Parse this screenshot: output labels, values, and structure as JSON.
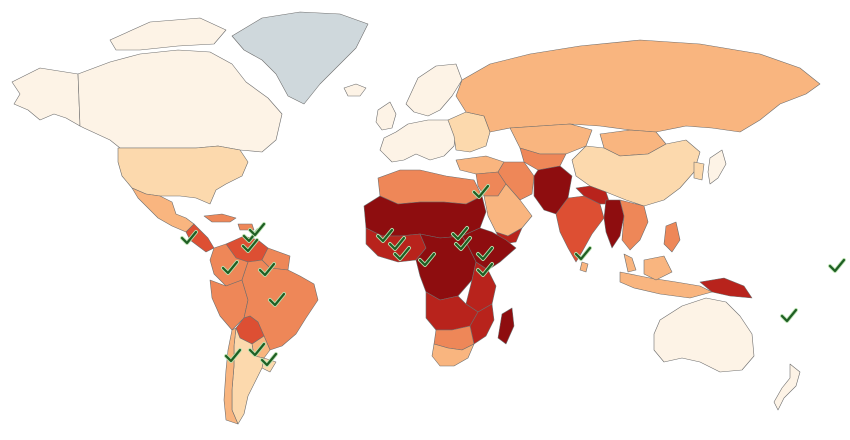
{
  "map": {
    "palette": {
      "ocean": "#ffffff",
      "border": "#6e6e6e",
      "no_data": "#cfd8dc",
      "level_1": "#fdf3e6",
      "level_2": "#fcd9ad",
      "level_3": "#f9b57f",
      "level_4": "#ee8758",
      "level_5": "#dd4f33",
      "level_6": "#b8231c",
      "level_7": "#8e0d0f"
    },
    "checkmark": {
      "fill": "#1e5e23",
      "stroke": "#b9e0b0",
      "icon": "check-icon"
    },
    "regions": [
      {
        "name": "alaska",
        "level": "level_1"
      },
      {
        "name": "canada",
        "level": "level_1"
      },
      {
        "name": "greenland",
        "level": "no_data"
      },
      {
        "name": "iceland",
        "level": "level_1"
      },
      {
        "name": "usa",
        "level": "level_2"
      },
      {
        "name": "mexico",
        "level": "level_3"
      },
      {
        "name": "central-america",
        "level": "level_5"
      },
      {
        "name": "caribbean",
        "level": "level_4"
      },
      {
        "name": "venezuela",
        "level": "level_5"
      },
      {
        "name": "colombia",
        "level": "level_4"
      },
      {
        "name": "guianas",
        "level": "level_4"
      },
      {
        "name": "peru",
        "level": "level_4"
      },
      {
        "name": "bolivia",
        "level": "level_5"
      },
      {
        "name": "brazil",
        "level": "level_4"
      },
      {
        "name": "paraguay",
        "level": "level_3"
      },
      {
        "name": "chile",
        "level": "level_3"
      },
      {
        "name": "argentina",
        "level": "level_2"
      },
      {
        "name": "uruguay",
        "level": "level_2"
      },
      {
        "name": "europe",
        "level": "level_1"
      },
      {
        "name": "uk-ireland",
        "level": "level_1"
      },
      {
        "name": "scandinavia",
        "level": "level_1"
      },
      {
        "name": "eastern-europe",
        "level": "level_2"
      },
      {
        "name": "russia",
        "level": "level_3"
      },
      {
        "name": "kazakhstan",
        "level": "level_3"
      },
      {
        "name": "mongolia",
        "level": "level_3"
      },
      {
        "name": "china",
        "level": "level_2"
      },
      {
        "name": "japan",
        "level": "level_1"
      },
      {
        "name": "korea",
        "level": "level_2"
      },
      {
        "name": "turkey",
        "level": "level_3"
      },
      {
        "name": "middle-east",
        "level": "level_4"
      },
      {
        "name": "arabia",
        "level": "level_3"
      },
      {
        "name": "yemen",
        "level": "level_6"
      },
      {
        "name": "iran",
        "level": "level_4"
      },
      {
        "name": "central-asia",
        "level": "level_4"
      },
      {
        "name": "afghanistan-pakistan",
        "level": "level_7"
      },
      {
        "name": "india",
        "level": "level_5"
      },
      {
        "name": "nepal-bangladesh",
        "level": "level_6"
      },
      {
        "name": "sri-lanka",
        "level": "level_3"
      },
      {
        "name": "myanmar",
        "level": "level_7"
      },
      {
        "name": "indochina",
        "level": "level_4"
      },
      {
        "name": "malaysia",
        "level": "level_3"
      },
      {
        "name": "philippines",
        "level": "level_4"
      },
      {
        "name": "indonesia",
        "level": "level_3"
      },
      {
        "name": "papua-new-guinea",
        "level": "level_6"
      },
      {
        "name": "australia",
        "level": "level_1"
      },
      {
        "name": "new-zealand",
        "level": "level_1"
      },
      {
        "name": "north-africa",
        "level": "level_4"
      },
      {
        "name": "sahel",
        "level": "level_7"
      },
      {
        "name": "west-africa",
        "level": "level_6"
      },
      {
        "name": "horn-of-africa",
        "level": "level_7"
      },
      {
        "name": "central-africa",
        "level": "level_7"
      },
      {
        "name": "east-africa",
        "level": "level_6"
      },
      {
        "name": "angola-zambia",
        "level": "level_6"
      },
      {
        "name": "mozambique",
        "level": "level_6"
      },
      {
        "name": "southern-africa",
        "level": "level_4"
      },
      {
        "name": "south-africa",
        "level": "level_3"
      },
      {
        "name": "madagascar",
        "level": "level_7"
      }
    ],
    "checkmarks": [
      {
        "name": "check-central-america"
      },
      {
        "name": "check-caribbean-1"
      },
      {
        "name": "check-caribbean-2"
      },
      {
        "name": "check-venezuela"
      },
      {
        "name": "check-colombia"
      },
      {
        "name": "check-guyana"
      },
      {
        "name": "check-brazil"
      },
      {
        "name": "check-paraguay"
      },
      {
        "name": "check-chile"
      },
      {
        "name": "check-argentina-east"
      },
      {
        "name": "check-egypt"
      },
      {
        "name": "check-senegal"
      },
      {
        "name": "check-mali"
      },
      {
        "name": "check-guinea"
      },
      {
        "name": "check-nigeria"
      },
      {
        "name": "check-chad"
      },
      {
        "name": "check-sudan"
      },
      {
        "name": "check-ethiopia"
      },
      {
        "name": "check-kenya"
      },
      {
        "name": "check-sri-lanka"
      },
      {
        "name": "check-pacific-1"
      },
      {
        "name": "check-pacific-2"
      }
    ]
  }
}
